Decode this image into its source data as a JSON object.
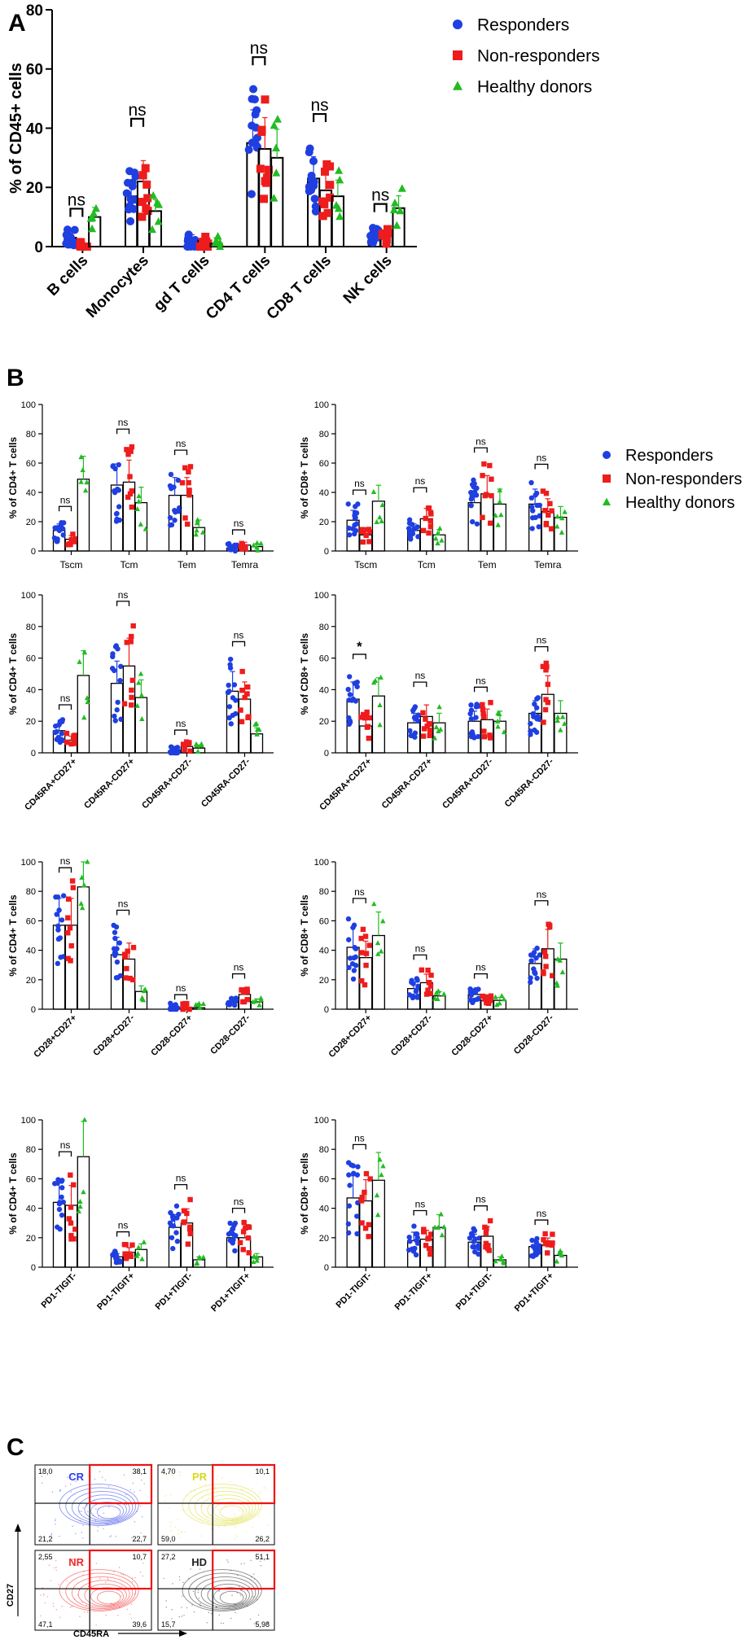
{
  "colors": {
    "responders": "#1f3fe0",
    "nonresponders": "#ee1c1c",
    "healthy": "#22bb22",
    "axis": "#000000"
  },
  "legend": {
    "responders": "Responders",
    "nonresponders": "Non-responders",
    "healthy": "Healthy donors"
  },
  "panels": {
    "a": "A",
    "b": "B",
    "c": "C"
  },
  "chart_data": [
    {
      "id": "A",
      "type": "bar",
      "panel_label": "A",
      "ylabel": "% of CD45+ cells",
      "ylim": [
        0,
        80
      ],
      "yticks": [
        0,
        20,
        40,
        60,
        80
      ],
      "categories": [
        "B cells",
        "Monocytes",
        "gd T cells",
        "CD4 T cells",
        "CD8 T cells",
        "NK cells"
      ],
      "series": [
        {
          "name": "Responders",
          "values": [
            3,
            17,
            2,
            35,
            23,
            4
          ]
        },
        {
          "name": "Non-responders",
          "values": [
            0.5,
            22,
            2,
            33,
            19,
            4
          ]
        },
        {
          "name": "Healthy donors",
          "values": [
            10,
            12,
            1,
            30,
            17,
            13
          ]
        }
      ],
      "annotations": [
        "ns",
        "ns",
        "",
        "ns",
        "ns",
        "ns"
      ]
    },
    {
      "id": "B1",
      "type": "bar",
      "panel_label": "B",
      "ylabel": "% of CD4+ T cells",
      "ylim": [
        0,
        100
      ],
      "yticks": [
        0,
        20,
        40,
        60,
        80,
        100
      ],
      "categories": [
        "Tscm",
        "Tcm",
        "Tem",
        "Temra"
      ],
      "series": [
        {
          "name": "Responders",
          "values": [
            14,
            45,
            38,
            2
          ]
        },
        {
          "name": "Non-responders",
          "values": [
            8,
            47,
            38,
            4
          ]
        },
        {
          "name": "Healthy donors",
          "values": [
            49,
            33,
            16,
            3
          ]
        }
      ],
      "annotations": [
        "ns",
        "ns",
        "ns",
        "ns"
      ]
    },
    {
      "id": "B2",
      "type": "bar",
      "ylabel": "% of CD8+ T cells",
      "ylim": [
        0,
        100
      ],
      "yticks": [
        0,
        20,
        40,
        60,
        80,
        100
      ],
      "categories": [
        "Tscm",
        "Tcm",
        "Tem",
        "Temra"
      ],
      "series": [
        {
          "name": "Responders",
          "values": [
            21,
            14,
            33,
            32
          ]
        },
        {
          "name": "Non-responders",
          "values": [
            11,
            22,
            39,
            27
          ]
        },
        {
          "name": "Healthy donors",
          "values": [
            34,
            11,
            32,
            23
          ]
        }
      ],
      "annotations": [
        "ns",
        "ns",
        "ns",
        "ns"
      ]
    },
    {
      "id": "B3",
      "type": "bar",
      "ylabel": "% of CD4+ T cells",
      "ylim": [
        0,
        100
      ],
      "yticks": [
        0,
        20,
        40,
        60,
        80,
        100
      ],
      "categories": [
        "CD45RA+CD27+",
        "CD45RA-CD27+",
        "CD45RA+CD27-",
        "CD45RA-CD27-"
      ],
      "series": [
        {
          "name": "Responders",
          "values": [
            14,
            44,
            1,
            39
          ]
        },
        {
          "name": "Non-responders",
          "values": [
            8,
            55,
            4,
            34
          ]
        },
        {
          "name": "Healthy donors",
          "values": [
            49,
            35,
            3,
            12
          ]
        }
      ],
      "annotations": [
        "ns",
        "ns",
        "ns",
        "ns"
      ]
    },
    {
      "id": "B4",
      "type": "bar",
      "ylabel": "% of CD8+ T cells",
      "ylim": [
        0,
        100
      ],
      "yticks": [
        0,
        20,
        40,
        60,
        80,
        100
      ],
      "categories": [
        "CD45RA+CD27+",
        "CD45RA-CD27+",
        "CD45RA+CD27-",
        "CD45RA-CD27-"
      ],
      "series": [
        {
          "name": "Responders",
          "values": [
            34,
            19,
            20,
            25
          ]
        },
        {
          "name": "Non-responders",
          "values": [
            17,
            23,
            21,
            37
          ]
        },
        {
          "name": "Healthy donors",
          "values": [
            36,
            19,
            20,
            25
          ]
        }
      ],
      "annotations": [
        "*",
        "ns",
        "ns",
        "ns"
      ]
    },
    {
      "id": "B5",
      "type": "bar",
      "ylabel": "% of CD4+ T cells",
      "ylim": [
        0,
        100
      ],
      "yticks": [
        0,
        20,
        40,
        60,
        80,
        100
      ],
      "categories": [
        "CD28+CD27+",
        "CD28+CD27-",
        "CD28-CD27+",
        "CD28-CD27-"
      ],
      "series": [
        {
          "name": "Responders",
          "values": [
            57,
            37,
            1,
            5
          ]
        },
        {
          "name": "Non-responders",
          "values": [
            57,
            34,
            1,
            10
          ]
        },
        {
          "name": "Healthy donors",
          "values": [
            83,
            12,
            1,
            5
          ]
        }
      ],
      "annotations": [
        "ns",
        "ns",
        "ns",
        "ns"
      ]
    },
    {
      "id": "B6",
      "type": "bar",
      "ylabel": "% of CD8+ T cells",
      "ylim": [
        0,
        100
      ],
      "yticks": [
        0,
        20,
        40,
        60,
        80,
        100
      ],
      "categories": [
        "CD28+CD27+",
        "CD28+CD27-",
        "CD28-CD27+",
        "CD28-CD27-"
      ],
      "series": [
        {
          "name": "Responders",
          "values": [
            42,
            14,
            10,
            31
          ]
        },
        {
          "name": "Non-responders",
          "values": [
            35,
            18,
            6,
            41
          ]
        },
        {
          "name": "Healthy donors",
          "values": [
            50,
            9,
            6,
            34
          ]
        }
      ],
      "annotations": [
        "ns",
        "ns",
        "ns",
        "ns"
      ]
    },
    {
      "id": "B7",
      "type": "bar",
      "ylabel": "% of CD4+ T cells",
      "ylim": [
        0,
        100
      ],
      "yticks": [
        0,
        20,
        40,
        60,
        80,
        100
      ],
      "categories": [
        "PD1-TIGIT-",
        "PD1-TIGIT+",
        "PD1+TIGIT-",
        "PD1+TIGIT+"
      ],
      "series": [
        {
          "name": "Responders",
          "values": [
            44,
            7,
            27,
            20
          ]
        },
        {
          "name": "Non-responders",
          "values": [
            42,
            10,
            30,
            20
          ]
        },
        {
          "name": "Healthy donors",
          "values": [
            75,
            12,
            5,
            7
          ]
        }
      ],
      "annotations": [
        "ns",
        "ns",
        "ns",
        "ns"
      ]
    },
    {
      "id": "B8",
      "type": "bar",
      "ylabel": "% of CD8+ T cells",
      "ylim": [
        0,
        100
      ],
      "yticks": [
        0,
        20,
        40,
        60,
        80,
        100
      ],
      "categories": [
        "PD1-TIGIT-",
        "PD1-TIGIT+",
        "PD1+TIGIT-",
        "PD1+TIGIT+"
      ],
      "series": [
        {
          "name": "Responders",
          "values": [
            47,
            18,
            17,
            14
          ]
        },
        {
          "name": "Non-responders",
          "values": [
            45,
            19,
            21,
            15
          ]
        },
        {
          "name": "Healthy donors",
          "values": [
            59,
            27,
            5,
            8
          ]
        }
      ],
      "annotations": [
        "ns",
        "ns",
        "ns",
        "ns"
      ]
    },
    {
      "id": "C",
      "type": "scatter",
      "panel_label": "C",
      "xlabel": "CD45RA",
      "ylabel": "CD27",
      "plots": [
        {
          "label": "CR",
          "color": "#2b3fe8",
          "quadrants": {
            "ul": "18,0",
            "ur": "38,1",
            "ll": "21,2",
            "lr": "22,7"
          }
        },
        {
          "label": "PR",
          "color": "#d8d820",
          "quadrants": {
            "ul": "4,70",
            "ur": "10,1",
            "ll": "59,0",
            "lr": "26,2"
          }
        },
        {
          "label": "NR",
          "color": "#ee2a2a",
          "quadrants": {
            "ul": "2,55",
            "ur": "10,7",
            "ll": "47,1",
            "lr": "39,6"
          }
        },
        {
          "label": "HD",
          "color": "#222222",
          "quadrants": {
            "ul": "27,2",
            "ur": "51,1",
            "ll": "15,7",
            "lr": "5,98"
          }
        }
      ]
    }
  ]
}
